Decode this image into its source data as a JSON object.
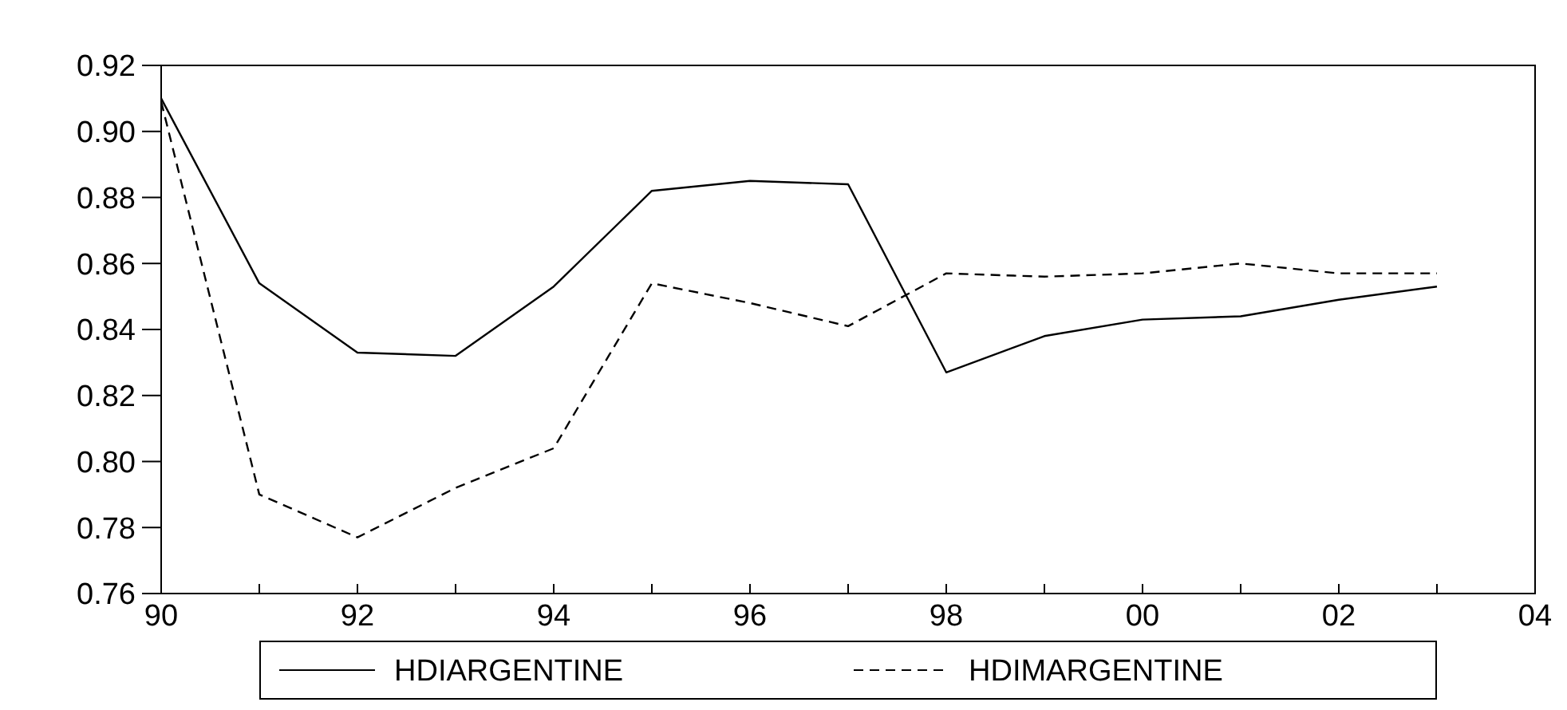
{
  "chart_data": {
    "type": "line",
    "x": [
      1990,
      1991,
      1992,
      1993,
      1994,
      1995,
      1996,
      1997,
      1998,
      1999,
      2000,
      2001,
      2002,
      2003
    ],
    "series": [
      {
        "name": "HDIARGENTINE",
        "color": "#000000",
        "line_style": "solid",
        "values": [
          0.91,
          0.854,
          0.833,
          0.832,
          0.853,
          0.882,
          0.885,
          0.884,
          0.827,
          0.838,
          0.843,
          0.844,
          0.849,
          0.853
        ]
      },
      {
        "name": "HDIMARGENTINE",
        "color": "#000000",
        "line_style": "dashed",
        "values": [
          0.909,
          0.79,
          0.777,
          0.792,
          0.804,
          0.854,
          0.848,
          0.841,
          0.857,
          0.856,
          0.857,
          0.86,
          0.857,
          0.857
        ]
      }
    ],
    "xlim": [
      1990,
      2004
    ],
    "xticks": [
      {
        "value": 1990,
        "label": "90"
      },
      {
        "value": 1991,
        "label": null
      },
      {
        "value": 1992,
        "label": "92"
      },
      {
        "value": 1993,
        "label": null
      },
      {
        "value": 1994,
        "label": "94"
      },
      {
        "value": 1995,
        "label": null
      },
      {
        "value": 1996,
        "label": "96"
      },
      {
        "value": 1997,
        "label": null
      },
      {
        "value": 1998,
        "label": "98"
      },
      {
        "value": 1999,
        "label": null
      },
      {
        "value": 2000,
        "label": "00"
      },
      {
        "value": 2001,
        "label": null
      },
      {
        "value": 2002,
        "label": "02"
      },
      {
        "value": 2003,
        "label": null
      },
      {
        "value": 2004,
        "label": "04"
      }
    ],
    "ylim": [
      0.76,
      0.92
    ],
    "yticks": [
      {
        "value": 0.76,
        "label": "0.76"
      },
      {
        "value": 0.78,
        "label": "0.78"
      },
      {
        "value": 0.8,
        "label": "0.80"
      },
      {
        "value": 0.82,
        "label": "0.82"
      },
      {
        "value": 0.84,
        "label": "0.84"
      },
      {
        "value": 0.86,
        "label": "0.86"
      },
      {
        "value": 0.88,
        "label": "0.88"
      },
      {
        "value": 0.9,
        "label": "0.90"
      },
      {
        "value": 0.92,
        "label": "0.92"
      }
    ],
    "grid": false,
    "legend": "bottom",
    "marker": "none"
  }
}
